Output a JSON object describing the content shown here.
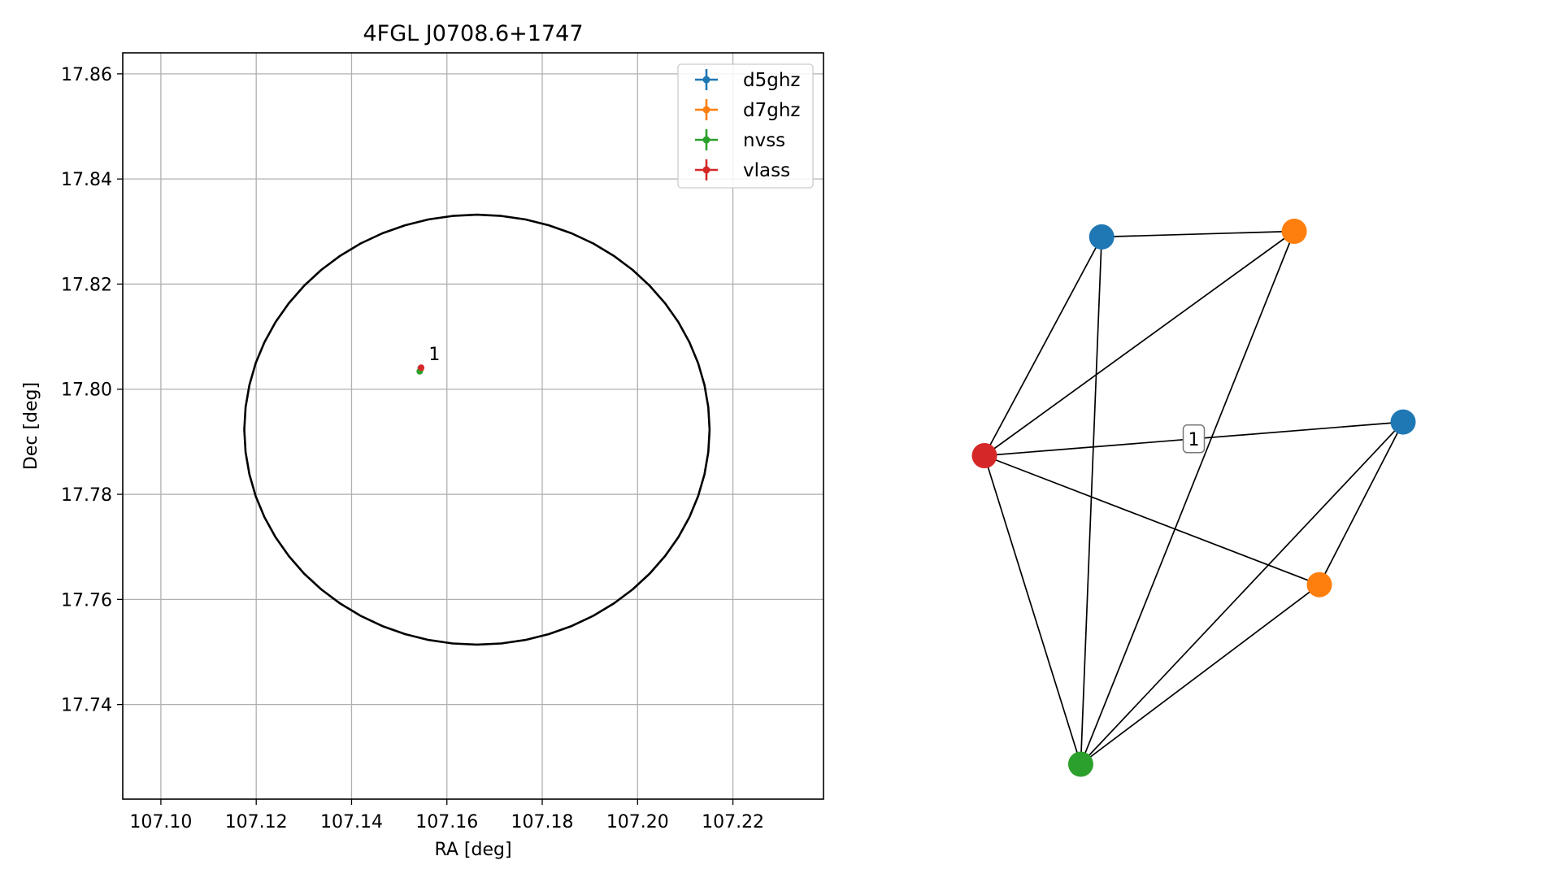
{
  "chart_data": [
    {
      "type": "scatter",
      "title": "4FGL J0708.6+1747",
      "xlabel": "RA [deg]",
      "ylabel": "Dec [deg]",
      "xlim": [
        107.092,
        107.239
      ],
      "ylim": [
        17.722,
        17.864
      ],
      "xticks": [
        107.1,
        107.12,
        107.14,
        107.16,
        107.18,
        107.2,
        107.22
      ],
      "xtick_labels": [
        "107.10",
        "107.12",
        "107.14",
        "107.16",
        "107.18",
        "107.20",
        "107.22"
      ],
      "yticks": [
        17.74,
        17.76,
        17.78,
        17.8,
        17.82,
        17.84,
        17.86
      ],
      "ytick_labels": [
        "17.74",
        "17.76",
        "17.78",
        "17.80",
        "17.82",
        "17.84",
        "17.86"
      ],
      "grid": true,
      "legend_position": "top-right",
      "series": [
        {
          "name": "d5ghz",
          "color": "#1f77b4",
          "x": [
            107.1545
          ],
          "y": [
            17.804
          ]
        },
        {
          "name": "d7ghz",
          "color": "#ff7f0e",
          "x": [
            107.1545
          ],
          "y": [
            17.8038
          ]
        },
        {
          "name": "nvss",
          "color": "#2ca02c",
          "x": [
            107.1543
          ],
          "y": [
            17.8034
          ]
        },
        {
          "name": "vlass",
          "color": "#d62728",
          "x": [
            107.1546
          ],
          "y": [
            17.8041
          ]
        }
      ],
      "annotations": [
        {
          "text": "1",
          "x": 107.1555,
          "y": 17.8046
        }
      ],
      "error_ellipse": {
        "center": [
          107.1663,
          17.7923
        ],
        "semi_major_ra": 0.0488,
        "semi_minor_dec": 0.0409,
        "color": "#000000"
      }
    },
    {
      "type": "network",
      "nodes": [
        {
          "id": "n1",
          "color": "#1f77b4",
          "pos": [
            0.28,
            0.94
          ]
        },
        {
          "id": "n2",
          "color": "#ff7f0e",
          "pos": [
            0.74,
            0.95
          ]
        },
        {
          "id": "n3",
          "color": "#1f77b4",
          "pos": [
            1.0,
            0.61
          ]
        },
        {
          "id": "n4",
          "color": "#d62728",
          "pos": [
            0.0,
            0.55
          ]
        },
        {
          "id": "n5",
          "color": "#ff7f0e",
          "pos": [
            0.8,
            0.32
          ]
        },
        {
          "id": "n6",
          "color": "#2ca02c",
          "pos": [
            0.23,
            0.0
          ]
        }
      ],
      "edges": [
        [
          "n1",
          "n2"
        ],
        [
          "n1",
          "n4"
        ],
        [
          "n1",
          "n6"
        ],
        [
          "n2",
          "n4"
        ],
        [
          "n2",
          "n6"
        ],
        [
          "n3",
          "n4"
        ],
        [
          "n3",
          "n5"
        ],
        [
          "n3",
          "n6"
        ],
        [
          "n4",
          "n5"
        ],
        [
          "n4",
          "n6"
        ],
        [
          "n5",
          "n6"
        ]
      ],
      "edge_labels": [
        {
          "edge": [
            "n3",
            "n4"
          ],
          "text": "1"
        }
      ]
    }
  ]
}
